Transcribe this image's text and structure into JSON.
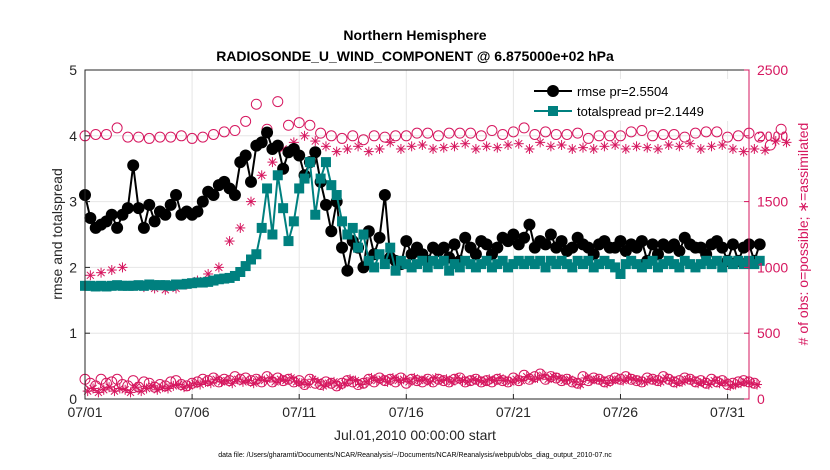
{
  "chart_data": {
    "type": "line",
    "title": "Northern Hemisphere",
    "subtitle": "RADIOSONDE_U_WIND_COMPONENT @ 6.875000e+02 hPa",
    "xlabel": "Jul.01,2010 00:00:00 start",
    "ylabel_left": "rmse and totalspread",
    "ylabel_right": "# of obs: o=possible; ∗=assimilated",
    "footnote": "data file: /Users/gharamti/Documents/NCAR/Reanalysis/~/Documents/NCAR/Reanalysis/webpub/obs_diag_output_2010-07.nc",
    "x_tick_labels": [
      "07/01",
      "07/06",
      "07/11",
      "07/16",
      "07/21",
      "07/26",
      "07/31"
    ],
    "x_tick_days": [
      1,
      6,
      11,
      16,
      21,
      26,
      31
    ],
    "x_range_days": [
      1,
      32
    ],
    "ylim_left": [
      0,
      5
    ],
    "yticks_left": [
      "0",
      "1",
      "2",
      "3",
      "4",
      "5"
    ],
    "ylim_right": [
      0,
      2500
    ],
    "yticks_right": [
      "0",
      "500",
      "1000",
      "1500",
      "2000",
      "2500"
    ],
    "colors": {
      "rmse": "#000000",
      "totalspread": "#00807f",
      "obs": "#d6175f",
      "grid": "#e6e6e6",
      "axis": "#262626"
    },
    "legend": [
      {
        "name": "rmse pr=2.5504",
        "color": "#000000",
        "marker": "circle"
      },
      {
        "name": "totalspread pr=2.1449",
        "color": "#00807f",
        "marker": "square"
      }
    ],
    "series": [
      {
        "name": "rmse",
        "axis": "left",
        "x_start": 1.0,
        "x_step": 0.25,
        "values": [
          3.1,
          2.75,
          2.6,
          2.65,
          2.7,
          2.8,
          2.6,
          2.8,
          2.9,
          3.55,
          2.9,
          2.6,
          2.95,
          2.7,
          2.85,
          2.8,
          2.95,
          3.1,
          2.8,
          2.85,
          2.8,
          2.85,
          3.0,
          3.15,
          3.1,
          3.25,
          3.3,
          3.2,
          3.1,
          3.6,
          3.7,
          3.3,
          3.85,
          3.9,
          4.05,
          3.8,
          3.85,
          3.5,
          3.75,
          3.8,
          3.7,
          3.4,
          3.6,
          3.75,
          3.3,
          2.95,
          2.55,
          3.0,
          2.3,
          1.95,
          2.4,
          2.3,
          2.0,
          2.55,
          2.2,
          2.45,
          3.1,
          2.15,
          2.1,
          2.05,
          2.4,
          2.2,
          2.3,
          2.2,
          2.1,
          2.3,
          2.25,
          2.3,
          2.15,
          2.35,
          2.1,
          2.45,
          2.3,
          2.2,
          2.4,
          2.35,
          2.2,
          2.3,
          2.45,
          2.4,
          2.5,
          2.35,
          2.45,
          2.65,
          2.3,
          2.4,
          2.35,
          2.5,
          2.3,
          2.4,
          2.25,
          2.3,
          2.45,
          2.35,
          2.3,
          2.2,
          2.35,
          2.4,
          2.3,
          2.3,
          2.4,
          2.25,
          2.35,
          2.3,
          2.4,
          2.1,
          2.35,
          2.2,
          2.35,
          2.3,
          2.35,
          2.25,
          2.45,
          2.35,
          2.3,
          2.3,
          2.2,
          2.35,
          2.4,
          2.3,
          2.1,
          2.35,
          2.1,
          2.3,
          2.35,
          2.1,
          2.35
        ]
      },
      {
        "name": "totalspread",
        "axis": "left",
        "x_start": 1.0,
        "x_step": 0.25,
        "values": [
          1.72,
          1.72,
          1.71,
          1.72,
          1.71,
          1.72,
          1.73,
          1.72,
          1.72,
          1.72,
          1.73,
          1.72,
          1.74,
          1.73,
          1.73,
          1.73,
          1.72,
          1.74,
          1.74,
          1.75,
          1.76,
          1.77,
          1.77,
          1.78,
          1.8,
          1.82,
          1.83,
          1.84,
          1.87,
          1.93,
          2.02,
          2.12,
          2.2,
          2.6,
          3.2,
          2.5,
          3.4,
          2.9,
          2.4,
          2.7,
          3.2,
          3.35,
          3.6,
          2.8,
          3.35,
          3.6,
          3.25,
          3.1,
          2.7,
          2.5,
          2.6,
          2.3,
          2.5,
          2.1,
          2.0,
          2.2,
          2.05,
          2.3,
          1.95,
          2.1,
          2.05,
          2.0,
          2.05,
          2.1,
          2.0,
          2.1,
          2.05,
          2.1,
          1.95,
          2.05,
          2.0,
          2.1,
          2.05,
          2.0,
          2.05,
          2.1,
          2.0,
          2.05,
          2.1,
          2.0,
          2.05,
          2.1,
          2.05,
          2.1,
          2.05,
          2.1,
          2.0,
          2.1,
          2.05,
          2.1,
          2.05,
          2.0,
          2.1,
          2.05,
          2.1,
          2.0,
          2.05,
          2.1,
          2.05,
          2.0,
          1.9,
          2.05,
          2.1,
          2.05,
          2.0,
          2.05,
          2.1,
          2.0,
          2.05,
          2.1,
          2.05,
          2.0,
          2.1,
          2.05,
          2.0,
          2.05,
          2.1,
          2.05,
          2.1,
          2.0,
          2.1,
          2.05,
          2.1,
          2.05,
          2.1,
          2.05,
          2.1
        ]
      },
      {
        "name": "obs possible (upper)",
        "axis": "right",
        "marker": "open-circle",
        "x_start": 1.0,
        "x_step": 0.5,
        "values": [
          2000,
          2010,
          2010,
          2060,
          1990,
          1990,
          1980,
          1990,
          1990,
          2000,
          1980,
          1990,
          2010,
          2030,
          2040,
          2110,
          2240,
          2050,
          2260,
          2080,
          2100,
          2080,
          2020,
          2000,
          1980,
          2000,
          1970,
          2000,
          1990,
          2000,
          2000,
          2020,
          2020,
          2000,
          2020,
          2020,
          2020,
          2000,
          2040,
          2010,
          2030,
          2060,
          2010,
          2030,
          2010,
          2010,
          2020,
          1980,
          2000,
          2000,
          2000,
          2030,
          2040,
          2000,
          2010,
          2010,
          1990,
          2020,
          2030,
          2030,
          1990,
          2000,
          2020,
          1990,
          1930,
          2050
        ]
      },
      {
        "name": "obs assimilated (upper)",
        "axis": "right",
        "marker": "star",
        "x_start": 1.25,
        "x_step": 0.5,
        "values": [
          940,
          960,
          980,
          1000,
          860,
          850,
          840,
          830,
          840,
          870,
          900,
          950,
          1000,
          1200,
          1300,
          1500,
          1700,
          1800,
          1900,
          1950,
          2000,
          1960,
          1920,
          1880,
          1900,
          1920,
          1880,
          1900,
          1950,
          1900,
          1920,
          1930,
          1900,
          1910,
          1920,
          1940,
          1900,
          1920,
          1910,
          1930,
          1940,
          1900,
          1950,
          1920,
          1930,
          1900,
          1910,
          1900,
          1920,
          1930,
          1900,
          1920,
          1910,
          1900,
          1930,
          1920,
          1940,
          1900,
          1920,
          1930,
          1900,
          1880,
          1900,
          1890,
          1960,
          1950
        ]
      },
      {
        "name": "obs possible (lower)",
        "axis": "right",
        "marker": "open-circle",
        "x_start": 1.0,
        "x_step": 0.25,
        "values": [
          150,
          120,
          100,
          150,
          120,
          130,
          150,
          110,
          100,
          140,
          90,
          130,
          120,
          90,
          110,
          100,
          130,
          140,
          110,
          100,
          120,
          130,
          150,
          140,
          160,
          130,
          150,
          140,
          170,
          150,
          160,
          140,
          150,
          130,
          170,
          130,
          160,
          140,
          150,
          130,
          140,
          110,
          150,
          120,
          110,
          130,
          120,
          100,
          120,
          140,
          130,
          110,
          120,
          150,
          130,
          160,
          140,
          150,
          130,
          160,
          120,
          150,
          140,
          130,
          150,
          130,
          150,
          140,
          130,
          150,
          160,
          130,
          140,
          150,
          130,
          140,
          130,
          150,
          140,
          130,
          160,
          140,
          180,
          150,
          170,
          190,
          150,
          170,
          160,
          140,
          150,
          130,
          120,
          170,
          140,
          160,
          150,
          130,
          140,
          160,
          150,
          170,
          150,
          140,
          130,
          160,
          150,
          140,
          170,
          150,
          130,
          140,
          160,
          150,
          130,
          140,
          120,
          150,
          130,
          140,
          110,
          120,
          130,
          140,
          130,
          120
        ]
      },
      {
        "name": "obs assimilated (lower)",
        "axis": "right",
        "marker": "star",
        "x_start": 1.125,
        "x_step": 0.25,
        "values": [
          60,
          80,
          50,
          70,
          90,
          60,
          80,
          70,
          50,
          90,
          60,
          80,
          100,
          70,
          90,
          80,
          100,
          110,
          90,
          100,
          120,
          110,
          130,
          120,
          150,
          130,
          140,
          120,
          150,
          130,
          140,
          120,
          150,
          140,
          160,
          130,
          150,
          140,
          160,
          130,
          120,
          110,
          150,
          130,
          100,
          120,
          130,
          100,
          120,
          150,
          140,
          110,
          130,
          160,
          140,
          150,
          130,
          160,
          140,
          150,
          130,
          160,
          140,
          150,
          130,
          160,
          140,
          150,
          130,
          160,
          140,
          130,
          150,
          140,
          130,
          150,
          140,
          160,
          140,
          130,
          150,
          140,
          170,
          150,
          160,
          180,
          150,
          170,
          160,
          140,
          150,
          130,
          110,
          160,
          140,
          150,
          140,
          120,
          140,
          150,
          140,
          160,
          150,
          140,
          130,
          150,
          140,
          130,
          160,
          140,
          120,
          130,
          150,
          140,
          120,
          130,
          110,
          140,
          120,
          130,
          100,
          110,
          120,
          130,
          120,
          110
        ]
      }
    ]
  }
}
